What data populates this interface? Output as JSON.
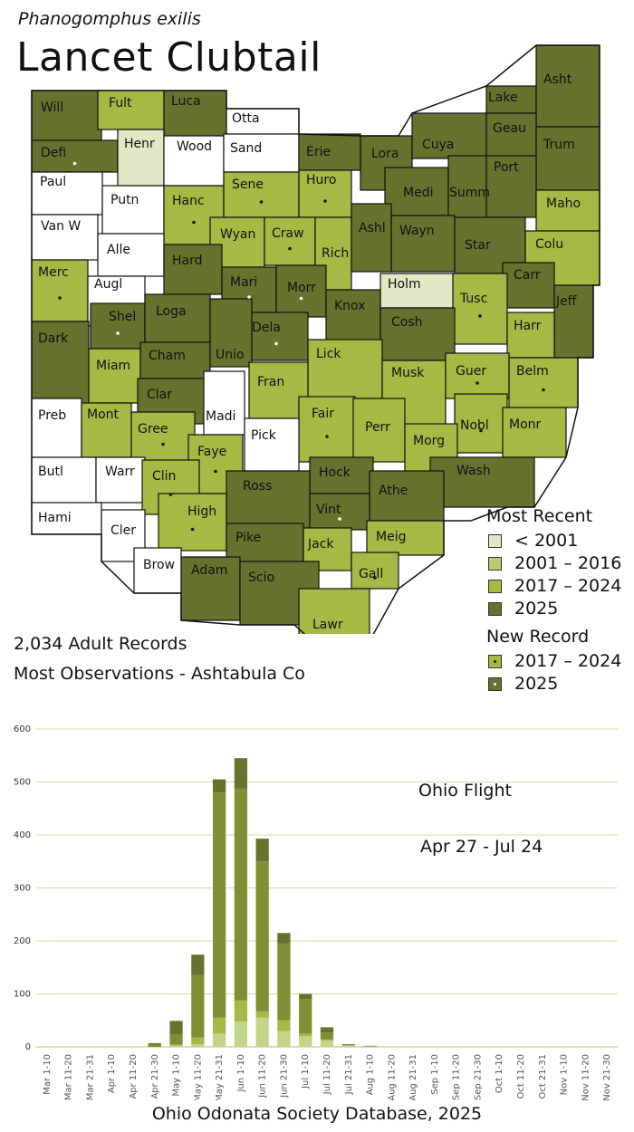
{
  "species_latin": "Phanogomphus exilis",
  "species_common": "Lancet Clubtail",
  "colors": {
    "none": "#ffffff",
    "pre2001": "#e2e8c6",
    "c2001_2016": "#b9cc72",
    "c2017_2024": "#a6b944",
    "c2025": "#66722d",
    "border": "#111111",
    "grid": "#d4dca4"
  },
  "summary": {
    "records": "2,034 Adult Records",
    "most_observations": "Most Observations - Ashtabula Co"
  },
  "legend": {
    "most_recent_title": "Most Recent",
    "most_recent_items": [
      "< 2001",
      "2001 – 2016",
      "2017 – 2024",
      "2025"
    ],
    "new_record_title": "New Record",
    "new_record_items": [
      "2017 – 2024",
      "2025"
    ]
  },
  "map_counties": [
    {
      "name": "Will",
      "cat": "c2025"
    },
    {
      "name": "Fult",
      "cat": "c2017_2024"
    },
    {
      "name": "Luca",
      "cat": "c2025"
    },
    {
      "name": "Otta",
      "cat": "none"
    },
    {
      "name": "Lake",
      "cat": "c2025"
    },
    {
      "name": "Asht",
      "cat": "c2025"
    },
    {
      "name": "Defi",
      "cat": "c2025",
      "new": "2025"
    },
    {
      "name": "Henr",
      "cat": "pre2001"
    },
    {
      "name": "Wood",
      "cat": "none"
    },
    {
      "name": "Sand",
      "cat": "none"
    },
    {
      "name": "Erie",
      "cat": "c2025"
    },
    {
      "name": "Lora",
      "cat": "c2025"
    },
    {
      "name": "Cuya",
      "cat": "c2025"
    },
    {
      "name": "Geau",
      "cat": "c2025"
    },
    {
      "name": "Trum",
      "cat": "c2025"
    },
    {
      "name": "Paul",
      "cat": "none"
    },
    {
      "name": "Putn",
      "cat": "none"
    },
    {
      "name": "Hanc",
      "cat": "c2017_2024",
      "new": "2025"
    },
    {
      "name": "Sene",
      "cat": "c2017_2024",
      "new": "2025"
    },
    {
      "name": "Huro",
      "cat": "c2017_2024",
      "new": "2025"
    },
    {
      "name": "Medi",
      "cat": "c2025"
    },
    {
      "name": "Summ",
      "cat": "c2025"
    },
    {
      "name": "Port",
      "cat": "c2025"
    },
    {
      "name": "Maho",
      "cat": "c2017_2024"
    },
    {
      "name": "Van W",
      "cat": "none"
    },
    {
      "name": "Alle",
      "cat": "none"
    },
    {
      "name": "Wyan",
      "cat": "c2017_2024"
    },
    {
      "name": "Craw",
      "cat": "c2017_2024",
      "new": "2025"
    },
    {
      "name": "Rich",
      "cat": "c2017_2024"
    },
    {
      "name": "Ashl",
      "cat": "c2025"
    },
    {
      "name": "Wayn",
      "cat": "c2025"
    },
    {
      "name": "Star",
      "cat": "c2025"
    },
    {
      "name": "Colu",
      "cat": "c2017_2024"
    },
    {
      "name": "Merc",
      "cat": "c2017_2024",
      "new": "2025"
    },
    {
      "name": "Augl",
      "cat": "none"
    },
    {
      "name": "Hard",
      "cat": "c2025"
    },
    {
      "name": "Mari",
      "cat": "c2025",
      "new": "2017–2024"
    },
    {
      "name": "Morr",
      "cat": "c2025",
      "new": "2025"
    },
    {
      "name": "Holm",
      "cat": "pre2001"
    },
    {
      "name": "Carr",
      "cat": "c2025"
    },
    {
      "name": "Jeff",
      "cat": "c2025"
    },
    {
      "name": "Shel",
      "cat": "c2025",
      "new": "2025"
    },
    {
      "name": "Loga",
      "cat": "c2025"
    },
    {
      "name": "Knox",
      "cat": "c2025"
    },
    {
      "name": "Tusc",
      "cat": "c2017_2024",
      "new": "2025"
    },
    {
      "name": "Dela",
      "cat": "c2025",
      "new": "2025"
    },
    {
      "name": "Cosh",
      "cat": "c2025"
    },
    {
      "name": "Harr",
      "cat": "c2017_2024"
    },
    {
      "name": "Dark",
      "cat": "c2025"
    },
    {
      "name": "Miam",
      "cat": "c2017_2024"
    },
    {
      "name": "Cham",
      "cat": "c2025"
    },
    {
      "name": "Unio",
      "cat": "c2025"
    },
    {
      "name": "Lick",
      "cat": "c2017_2024"
    },
    {
      "name": "Musk",
      "cat": "c2017_2024"
    },
    {
      "name": "Guer",
      "cat": "c2017_2024",
      "new": "2025"
    },
    {
      "name": "Belm",
      "cat": "c2017_2024",
      "new": "2025"
    },
    {
      "name": "Clar",
      "cat": "c2025"
    },
    {
      "name": "Fran",
      "cat": "c2017_2024"
    },
    {
      "name": "Preb",
      "cat": "none"
    },
    {
      "name": "Mont",
      "cat": "c2017_2024"
    },
    {
      "name": "Gree",
      "cat": "c2017_2024",
      "new": "2025"
    },
    {
      "name": "Madi",
      "cat": "none"
    },
    {
      "name": "Fair",
      "cat": "c2017_2024",
      "new": "2025"
    },
    {
      "name": "Perr",
      "cat": "c2017_2024"
    },
    {
      "name": "Nobl",
      "cat": "c2017_2024",
      "new": "2025"
    },
    {
      "name": "Monr",
      "cat": "c2017_2024"
    },
    {
      "name": "Pick",
      "cat": "none"
    },
    {
      "name": "Faye",
      "cat": "c2017_2024",
      "new": "2025"
    },
    {
      "name": "Morg",
      "cat": "c2017_2024"
    },
    {
      "name": "Butl",
      "cat": "none"
    },
    {
      "name": "Warr",
      "cat": "none"
    },
    {
      "name": "Clin",
      "cat": "c2017_2024",
      "new": "2025"
    },
    {
      "name": "Hock",
      "cat": "c2025"
    },
    {
      "name": "Wash",
      "cat": "c2025"
    },
    {
      "name": "Ross",
      "cat": "c2025"
    },
    {
      "name": "Athe",
      "cat": "c2025"
    },
    {
      "name": "Hami",
      "cat": "none"
    },
    {
      "name": "Cler",
      "cat": "none"
    },
    {
      "name": "High",
      "cat": "c2017_2024",
      "new": "2025"
    },
    {
      "name": "Vint",
      "cat": "c2025",
      "new": "2025"
    },
    {
      "name": "Meig",
      "cat": "c2017_2024"
    },
    {
      "name": "Pike",
      "cat": "c2025"
    },
    {
      "name": "Jack",
      "cat": "c2017_2024"
    },
    {
      "name": "Brow",
      "cat": "none"
    },
    {
      "name": "Adam",
      "cat": "c2025"
    },
    {
      "name": "Scio",
      "cat": "c2025"
    },
    {
      "name": "Gall",
      "cat": "c2017_2024",
      "new": "2025"
    },
    {
      "name": "Lawr",
      "cat": "c2017_2024"
    }
  ],
  "flight": {
    "title": "Ohio Flight",
    "range": "Apr 27 - Jul 24"
  },
  "chart_data": {
    "type": "bar",
    "stacked": true,
    "categories": [
      "Mar 1-10",
      "Mar 11-20",
      "Mar 21-31",
      "Apr 1-10",
      "Apr 11-20",
      "Apr 21-30",
      "May 1-10",
      "May 11-20",
      "May 21-31",
      "Jun 1-10",
      "Jun 11-20",
      "Jun 21-30",
      "Jul 1-10",
      "Jul 11-20",
      "Jul 21-31",
      "Aug 1-10",
      "Aug 11-20",
      "Aug 21-31",
      "Sep 1-10",
      "Sep 11-20",
      "Sep 21-30",
      "Oct 1-10",
      "Oct 11-20",
      "Oct 21-31",
      "Nov 1-10",
      "Nov 11-20",
      "Nov 21-30"
    ],
    "series": [
      {
        "color": "#c2d38a",
        "values": [
          0,
          0,
          0,
          0,
          0,
          0,
          2,
          5,
          25,
          48,
          55,
          30,
          20,
          12,
          3,
          1,
          0,
          0,
          0,
          0,
          0,
          0,
          0,
          0,
          0,
          0,
          0
        ]
      },
      {
        "color": "#a6b944",
        "values": [
          0,
          0,
          0,
          0,
          0,
          0,
          2,
          13,
          30,
          40,
          12,
          20,
          5,
          2,
          0,
          0,
          0,
          0,
          0,
          0,
          0,
          0,
          0,
          0,
          0,
          0,
          0
        ]
      },
      {
        "color": "#7f8f33",
        "values": [
          0,
          0,
          0,
          0,
          0,
          4,
          20,
          118,
          425,
          400,
          283,
          145,
          65,
          13,
          0,
          0,
          0,
          0,
          0,
          0,
          0,
          0,
          0,
          0,
          0,
          0,
          0
        ]
      },
      {
        "color": "#66722d",
        "values": [
          0,
          0,
          0,
          0,
          0,
          3,
          25,
          38,
          25,
          57,
          43,
          20,
          10,
          10,
          2,
          1,
          0,
          0,
          0,
          0,
          0,
          0,
          0,
          0,
          0,
          0,
          0
        ]
      }
    ],
    "totals": [
      0,
      0,
      0,
      0,
      0,
      7,
      49,
      174,
      505,
      545,
      393,
      215,
      100,
      37,
      5,
      2,
      0,
      0,
      0,
      0,
      0,
      0,
      0,
      0,
      0,
      0,
      0
    ],
    "ylim": [
      0,
      600
    ],
    "yticks": [
      0,
      100,
      200,
      300,
      400,
      500,
      600
    ],
    "grid": true
  },
  "footer": "Ohio Odonata Society Database, 2025"
}
